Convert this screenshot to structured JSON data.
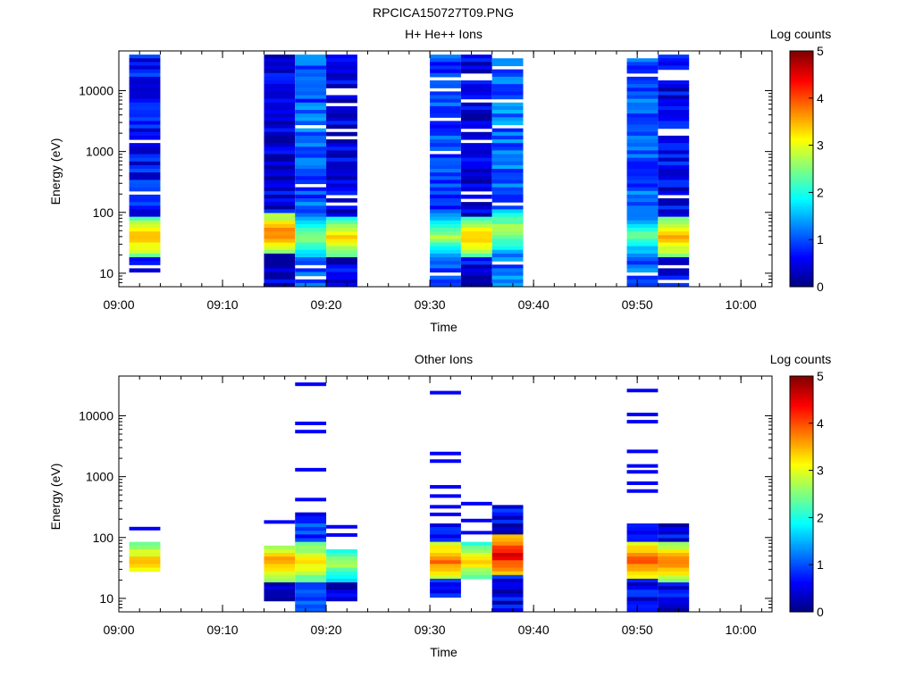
{
  "title": "RPCICA150727T09.PNG",
  "chart_data": [
    {
      "type": "heatmap",
      "title": "H+ He++ Ions",
      "xlabel": "Time",
      "ylabel": "Energy (eV)",
      "x_ticks": [
        "09:00",
        "09:10",
        "09:20",
        "09:30",
        "09:40",
        "09:50",
        "10:00"
      ],
      "x_range": [
        "09:00",
        "10:03"
      ],
      "y_scale": "log",
      "y_ticks": [
        "10",
        "100",
        "1000",
        "10000"
      ],
      "y_range": [
        6,
        45000
      ],
      "colorbar": {
        "label": "Log counts",
        "range": [
          0,
          5
        ],
        "ticks": [
          "0",
          "1",
          "2",
          "3",
          "4",
          "5"
        ]
      },
      "columns": [
        {
          "start": "09:01",
          "end": "09:04",
          "emin": 10,
          "emax": 40000,
          "peak_energy": 38,
          "peak_log_counts": 3.6,
          "background_log_counts": 0.7
        },
        {
          "start": "09:14",
          "end": "09:17",
          "emin": 6,
          "emax": 40000,
          "peak_energy": 45,
          "peak_log_counts": 3.8,
          "background_log_counts": 0.5
        },
        {
          "start": "09:17",
          "end": "09:20",
          "emin": 6,
          "emax": 40000,
          "peak_energy": 38,
          "peak_log_counts": 2.6,
          "background_log_counts": 1.1
        },
        {
          "start": "09:20",
          "end": "09:23",
          "emin": 6,
          "emax": 40000,
          "peak_energy": 38,
          "peak_log_counts": 3.3,
          "background_log_counts": 0.5
        },
        {
          "start": "09:30",
          "end": "09:33",
          "emin": 6,
          "emax": 40000,
          "peak_energy": 40,
          "peak_log_counts": 2.7,
          "background_log_counts": 1.0
        },
        {
          "start": "09:33",
          "end": "09:36",
          "emin": 6,
          "emax": 40000,
          "peak_energy": 38,
          "peak_log_counts": 3.5,
          "background_log_counts": 0.5
        },
        {
          "start": "09:36",
          "end": "09:39",
          "emin": 6,
          "emax": 40000,
          "peak_energy": 50,
          "peak_log_counts": 2.9,
          "background_log_counts": 1.2
        },
        {
          "start": "09:49",
          "end": "09:52",
          "emin": 6,
          "emax": 40000,
          "peak_energy": 40,
          "peak_log_counts": 2.4,
          "background_log_counts": 1.1
        },
        {
          "start": "09:52",
          "end": "09:55",
          "emin": 6,
          "emax": 40000,
          "peak_energy": 38,
          "peak_log_counts": 3.6,
          "background_log_counts": 0.6
        }
      ]
    },
    {
      "type": "heatmap",
      "title": "Other Ions",
      "xlabel": "Time",
      "ylabel": "Energy (eV)",
      "x_ticks": [
        "09:00",
        "09:10",
        "09:20",
        "09:30",
        "09:40",
        "09:50",
        "10:00"
      ],
      "x_range": [
        "09:00",
        "10:03"
      ],
      "y_scale": "log",
      "y_ticks": [
        "10",
        "100",
        "1000",
        "10000"
      ],
      "y_range": [
        6,
        45000
      ],
      "colorbar": {
        "label": "Log counts",
        "range": [
          0,
          5
        ],
        "ticks": [
          "0",
          "1",
          "2",
          "3",
          "4",
          "5"
        ]
      },
      "columns": [
        {
          "start": "09:01",
          "end": "09:04",
          "emin": 26,
          "emax": 85,
          "peak_energy": 38,
          "peak_log_counts": 3.6,
          "background_log_counts": 0.3,
          "sparse_lines": [
            140
          ]
        },
        {
          "start": "09:14",
          "end": "09:17",
          "emin": 9,
          "emax": 70,
          "peak_energy": 40,
          "peak_log_counts": 3.7,
          "background_log_counts": 0.2,
          "sparse_lines": [
            180
          ]
        },
        {
          "start": "09:17",
          "end": "09:20",
          "emin": 6,
          "emax": 260,
          "peak_energy": 40,
          "peak_log_counts": 3.4,
          "background_log_counts": 0.8,
          "sparse_lines": [
            420,
            1300,
            5500,
            7500,
            33000
          ]
        },
        {
          "start": "09:20",
          "end": "09:23",
          "emin": 9,
          "emax": 60,
          "peak_energy": 38,
          "peak_log_counts": 2.8,
          "background_log_counts": 0.3,
          "sparse_lines": [
            110,
            150
          ]
        },
        {
          "start": "09:30",
          "end": "09:33",
          "emin": 10,
          "emax": 170,
          "peak_energy": 42,
          "peak_log_counts": 3.9,
          "background_log_counts": 0.6,
          "sparse_lines": [
            240,
            320,
            480,
            680,
            1800,
            2400,
            24000
          ]
        },
        {
          "start": "09:33",
          "end": "09:36",
          "emin": 20,
          "emax": 80,
          "peak_energy": 40,
          "peak_log_counts": 3.3,
          "background_log_counts": 0.4,
          "sparse_lines": [
            120,
            190,
            360
          ]
        },
        {
          "start": "09:36",
          "end": "09:39",
          "emin": 6,
          "emax": 340,
          "peak_energy": 52,
          "peak_log_counts": 4.5,
          "background_log_counts": 0.5,
          "sparse_lines": []
        },
        {
          "start": "09:49",
          "end": "09:52",
          "emin": 6,
          "emax": 170,
          "peak_energy": 42,
          "peak_log_counts": 4.0,
          "background_log_counts": 0.6,
          "sparse_lines": [
            580,
            780,
            1200,
            1500,
            2600,
            8000,
            10500,
            26000
          ]
        },
        {
          "start": "09:52",
          "end": "09:55",
          "emin": 6,
          "emax": 160,
          "peak_energy": 40,
          "peak_log_counts": 3.8,
          "background_log_counts": 0.5,
          "sparse_lines": []
        }
      ]
    }
  ]
}
